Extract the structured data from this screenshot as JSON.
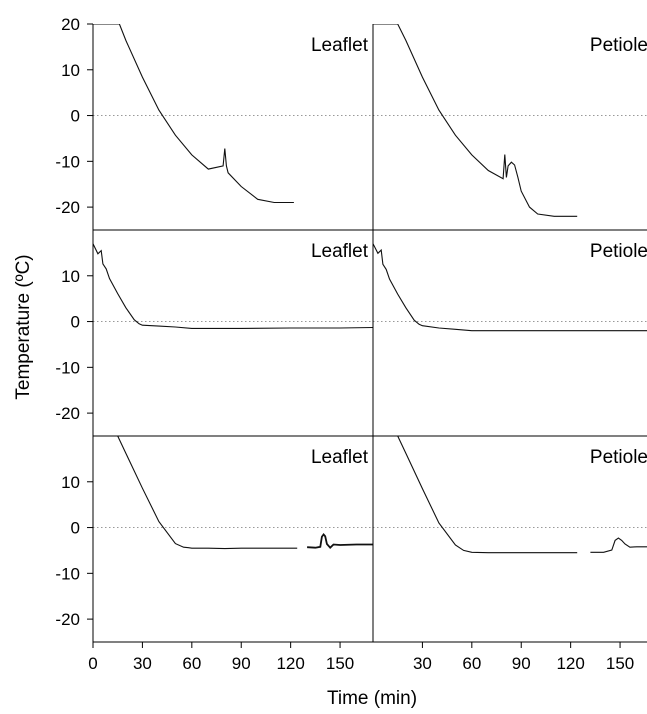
{
  "figure": {
    "ylabel": "Temperature (ºC)",
    "xlabel": "Time (min)"
  },
  "chart_data": [
    {
      "type": "line",
      "label": "Leaflet",
      "row": 1,
      "col": 1,
      "xlim": [
        0,
        170
      ],
      "ylim": [
        -25,
        20
      ],
      "yticks": [
        20,
        10,
        0,
        -10,
        -20
      ],
      "xticks": [],
      "refline_y": 0,
      "series": [
        {
          "x": [
            0,
            16,
            20,
            30,
            40,
            50,
            60,
            70,
            79,
            80,
            81,
            82,
            90,
            100,
            110,
            122
          ],
          "y": [
            20,
            20,
            16.4,
            8.4,
            1.2,
            -4.3,
            -8.6,
            -11.7,
            -11,
            -7.2,
            -11,
            -12.5,
            -15.5,
            -18.3,
            -19,
            -19
          ]
        }
      ]
    },
    {
      "type": "line",
      "label": "Petiole",
      "row": 1,
      "col": 2,
      "xlim": [
        0,
        170
      ],
      "ylim": [
        -25,
        20
      ],
      "yticks": [],
      "xticks": [],
      "refline_y": 0,
      "series": [
        {
          "x": [
            0,
            15,
            20,
            30,
            40,
            50,
            60,
            70,
            79,
            80,
            81,
            82,
            84,
            86,
            88,
            90,
            95,
            100,
            110,
            124
          ],
          "y": [
            20,
            20,
            16.4,
            8.4,
            1.2,
            -4.3,
            -8.6,
            -12,
            -13.8,
            -8.5,
            -13.5,
            -11,
            -10.2,
            -10.8,
            -13.5,
            -16.5,
            -20,
            -21.5,
            -22,
            -22
          ]
        }
      ]
    },
    {
      "type": "line",
      "label": "Leaflet",
      "row": 2,
      "col": 1,
      "xlim": [
        0,
        170
      ],
      "ylim": [
        -25,
        20
      ],
      "yticks": [
        10,
        0,
        -10,
        -20
      ],
      "xticks": [],
      "refline_y": 0,
      "series": [
        {
          "x": [
            0,
            3,
            5,
            6,
            8,
            10,
            15,
            20,
            25,
            28,
            30,
            40,
            50,
            60,
            90,
            120,
            150,
            170
          ],
          "y": [
            17,
            14.8,
            15.5,
            12.6,
            11.5,
            9.4,
            6.1,
            3,
            0.4,
            -0.5,
            -0.8,
            -1,
            -1.2,
            -1.5,
            -1.5,
            -1.4,
            -1.4,
            -1.3
          ]
        }
      ]
    },
    {
      "type": "line",
      "label": "Petiole",
      "row": 2,
      "col": 2,
      "xlim": [
        0,
        170
      ],
      "ylim": [
        -25,
        20
      ],
      "yticks": [],
      "xticks": [],
      "refline_y": 0,
      "series": [
        {
          "x": [
            0,
            3,
            5,
            6,
            8,
            10,
            15,
            20,
            25,
            28,
            30,
            40,
            50,
            60,
            90,
            120,
            150,
            170
          ],
          "y": [
            17,
            14.9,
            15.6,
            12.5,
            11.4,
            9.3,
            6,
            3,
            0.3,
            -0.6,
            -0.9,
            -1.4,
            -1.7,
            -2,
            -2,
            -2,
            -2,
            -2
          ]
        }
      ]
    },
    {
      "type": "line",
      "label": "Leaflet",
      "row": 3,
      "col": 1,
      "xlim": [
        0,
        170
      ],
      "ylim": [
        -25,
        20
      ],
      "yticks": [
        10,
        0,
        -10,
        -20
      ],
      "xticks": [
        0,
        30,
        60,
        90,
        120,
        150
      ],
      "refline_y": 0,
      "series": [
        {
          "x": [
            15,
            20,
            30,
            40,
            50,
            55,
            58,
            60,
            70,
            80,
            90,
            100,
            110,
            120,
            124
          ],
          "y": [
            20,
            16.2,
            8.6,
            1.3,
            -3.5,
            -4.3,
            -4.4,
            -4.5,
            -4.5,
            -4.6,
            -4.5,
            -4.5,
            -4.5,
            -4.5,
            -4.5
          ]
        },
        {
          "x": [
            130,
            135,
            138,
            139,
            140,
            141,
            142,
            144,
            146,
            150,
            160,
            170
          ],
          "y": [
            -4.3,
            -4.4,
            -4.2,
            -2,
            -1.5,
            -1.9,
            -3.6,
            -4.4,
            -3.7,
            -3.8,
            -3.7,
            -3.7
          ]
        }
      ]
    },
    {
      "type": "line",
      "label": "Petiole",
      "row": 3,
      "col": 2,
      "xlim": [
        0,
        170
      ],
      "ylim": [
        -25,
        20
      ],
      "yticks": [],
      "xticks": [
        30,
        60,
        90,
        120,
        150
      ],
      "refline_y": 0,
      "series": [
        {
          "x": [
            15,
            20,
            30,
            40,
            50,
            55,
            60,
            70,
            80,
            90,
            100,
            110,
            124
          ],
          "y": [
            20,
            16.2,
            8.5,
            1,
            -3.8,
            -5,
            -5.4,
            -5.5,
            -5.5,
            -5.5,
            -5.5,
            -5.5,
            -5.5
          ]
        },
        {
          "x": [
            132,
            140,
            145,
            147,
            149,
            151,
            153,
            156,
            160,
            165,
            170
          ],
          "y": [
            -5.4,
            -5.4,
            -4.9,
            -2.8,
            -2.3,
            -2.8,
            -3.6,
            -4.3,
            -4.2,
            -4.2,
            -4.2
          ]
        }
      ]
    }
  ]
}
